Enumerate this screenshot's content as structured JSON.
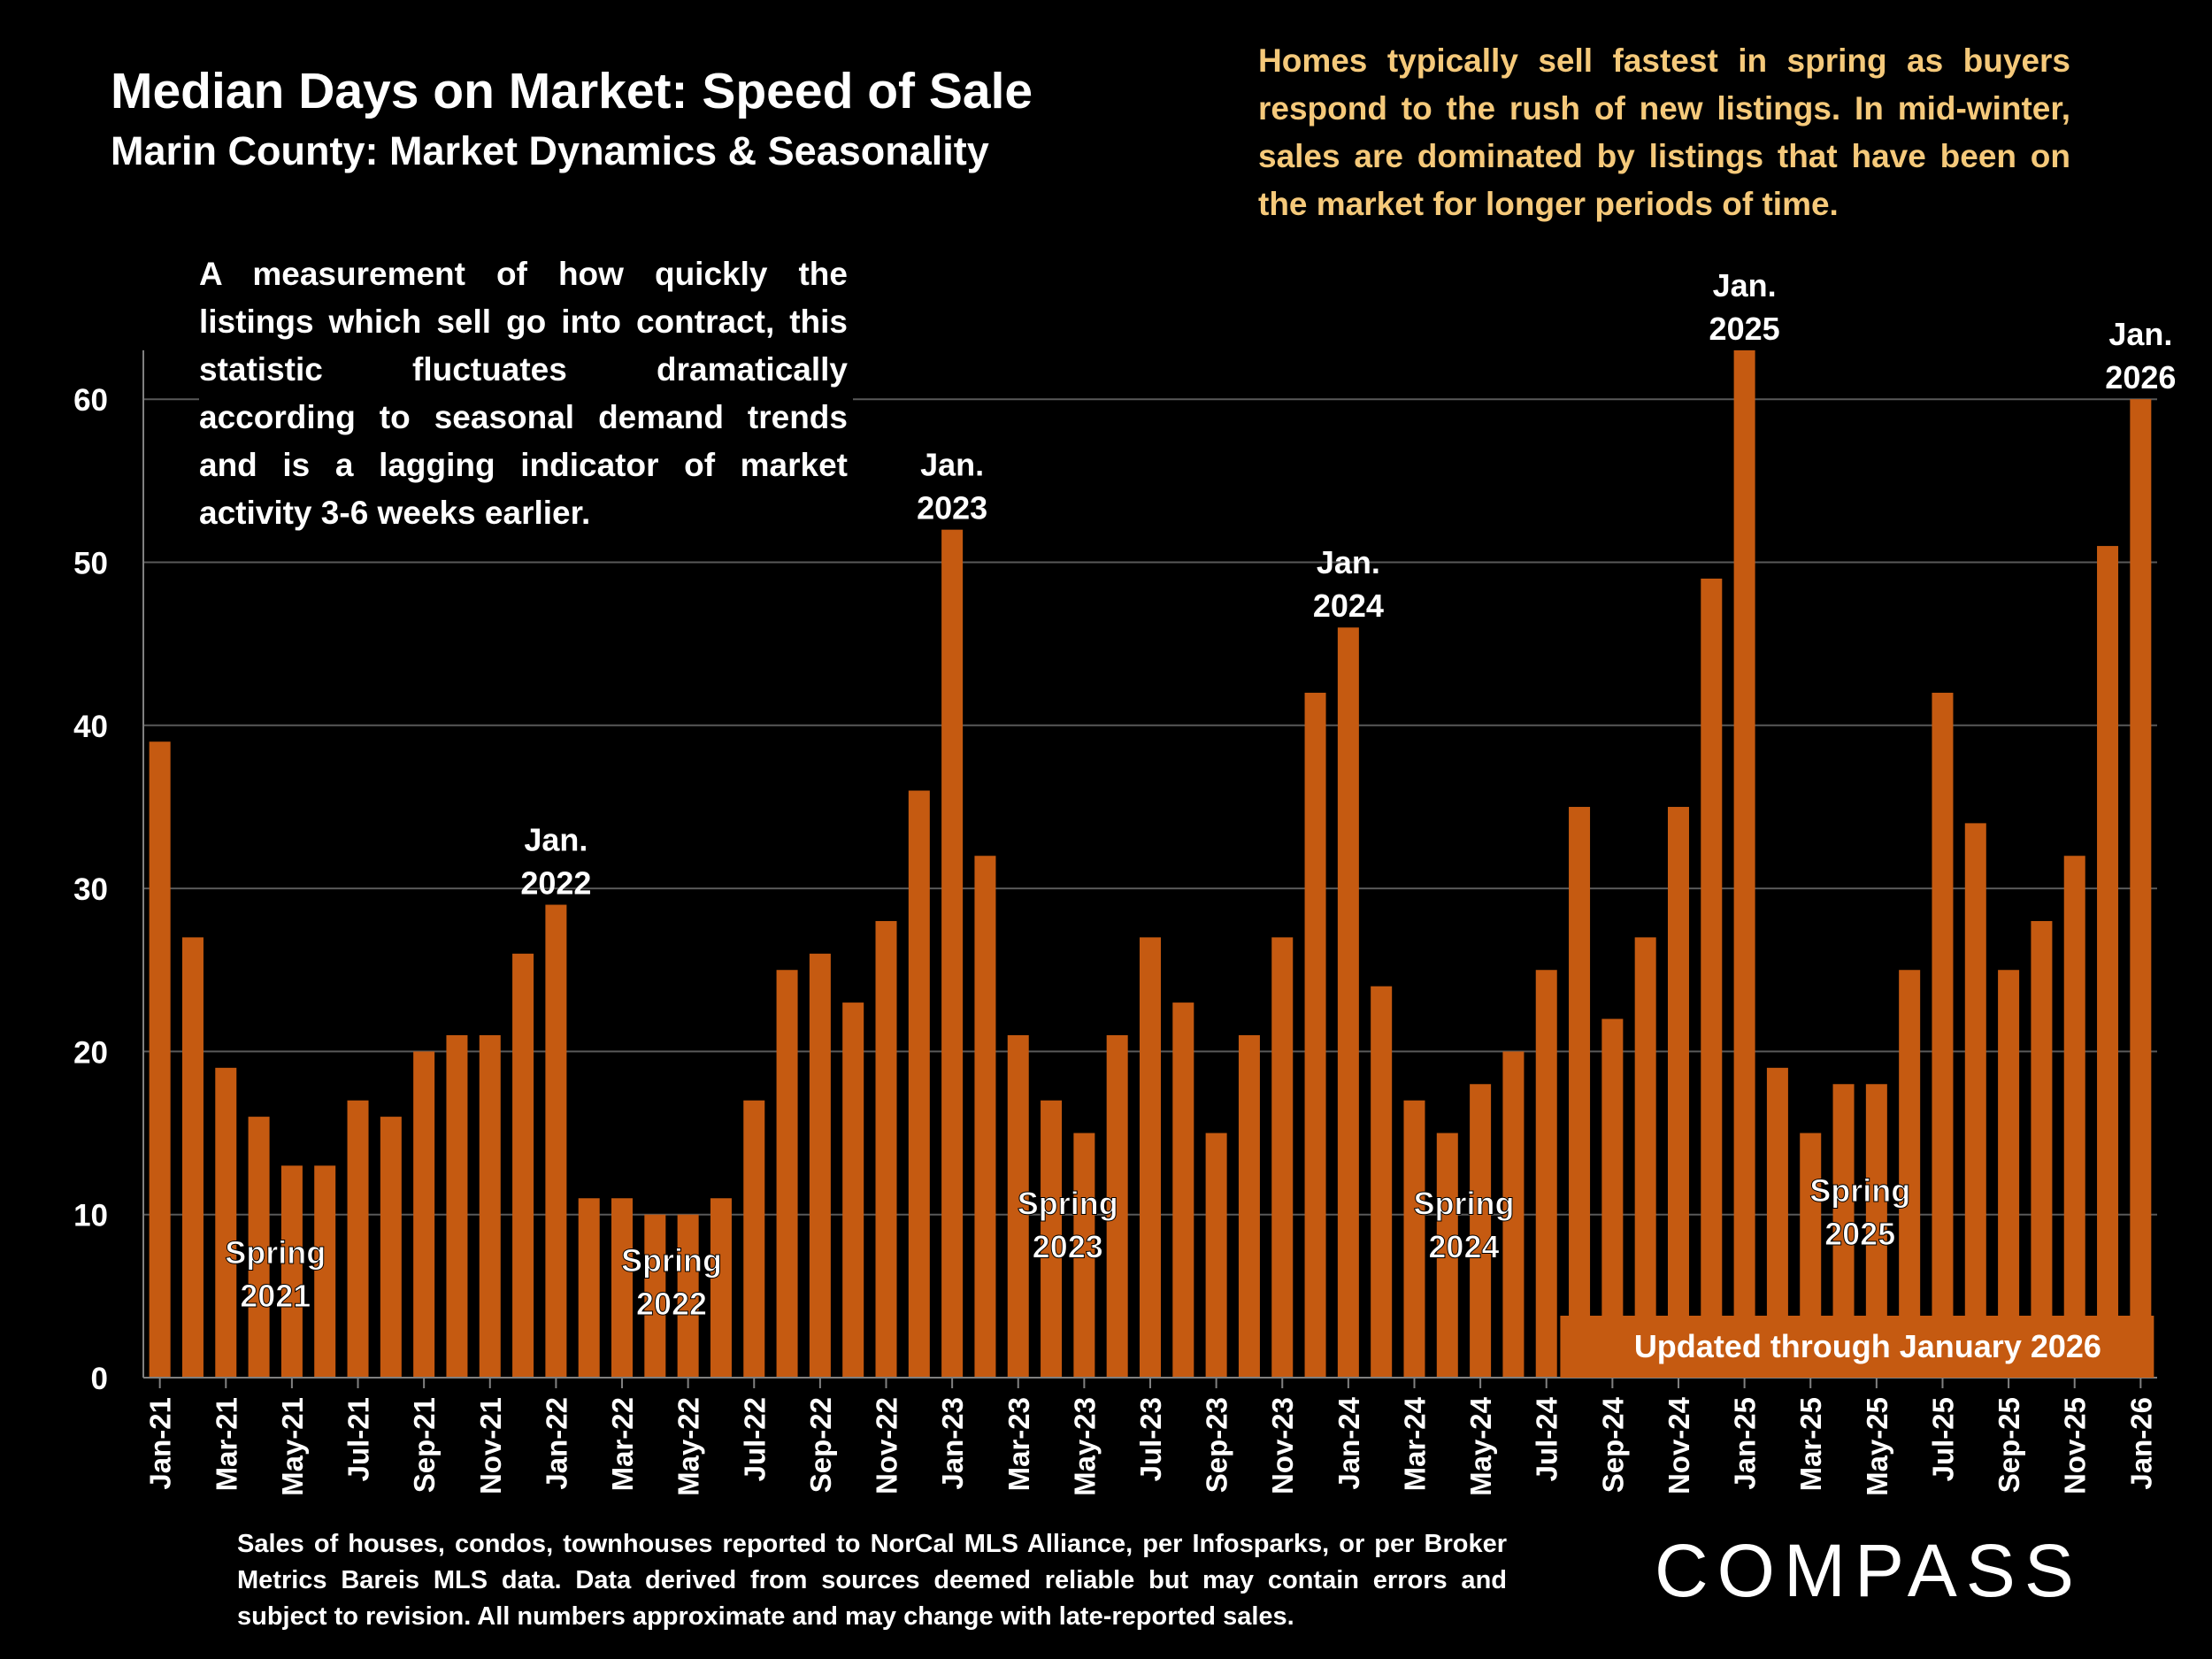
{
  "title": "Median Days on Market:  Speed of Sale",
  "subtitle": "Marin County: Market Dynamics & Seasonality",
  "seasonal_note": "Homes typically sell fastest in spring as buyers respond to the rush of new listings. In mid-winter, sales are dominated by listings that have been on the market for longer periods of time.",
  "measure_note": "A measurement of how quickly the listings which sell go into contract, this statistic fluctuates dramatically according to seasonal demand trends and is a lagging indicator of market activity 3-6 weeks earlier.",
  "footnote": "Sales of houses, condos, townhouses reported to NorCal MLS Alliance, per Infosparks, or per Broker Metrics Bareis MLS data. Data derived from sources deemed reliable but may contain errors and subject to revision. All numbers approximate and may change with late-reported sales.",
  "brand": "COMPASS",
  "colors": {
    "bar": "#c55a11",
    "background": "#000000",
    "note": "#f5c97a",
    "gridline": "#595959"
  },
  "chart_data": {
    "type": "bar",
    "title": "Median Days on Market:  Speed of Sale",
    "xlabel": "",
    "ylabel": "",
    "ylim": [
      0,
      63
    ],
    "yticks": [
      0,
      10,
      20,
      30,
      40,
      50,
      60
    ],
    "grid": true,
    "categories": [
      "Jan-21",
      "Feb-21",
      "Mar-21",
      "Apr-21",
      "May-21",
      "Jun-21",
      "Jul-21",
      "Aug-21",
      "Sep-21",
      "Oct-21",
      "Nov-21",
      "Dec-21",
      "Jan-22",
      "Feb-22",
      "Mar-22",
      "Apr-22",
      "May-22",
      "Jun-22",
      "Jul-22",
      "Aug-22",
      "Sep-22",
      "Oct-22",
      "Nov-22",
      "Dec-22",
      "Jan-23",
      "Feb-23",
      "Mar-23",
      "Apr-23",
      "May-23",
      "Jun-23",
      "Jul-23",
      "Aug-23",
      "Sep-23",
      "Oct-23",
      "Nov-23",
      "Dec-23",
      "Jan-24",
      "Feb-24",
      "Mar-24",
      "Apr-24",
      "May-24",
      "Jun-24",
      "Jul-24",
      "Aug-24",
      "Sep-24",
      "Oct-24",
      "Nov-24",
      "Dec-24",
      "Jan-25",
      "Feb-25",
      "Mar-25",
      "Apr-25",
      "May-25",
      "Jun-25",
      "Jul-25",
      "Aug-25",
      "Sep-25",
      "Oct-25",
      "Nov-25",
      "Dec-25",
      "Jan-26"
    ],
    "values": [
      39,
      27,
      19,
      16,
      13,
      13,
      17,
      16,
      20,
      21,
      21,
      26,
      29,
      11,
      11,
      10,
      10,
      11,
      17,
      25,
      26,
      23,
      28,
      36,
      52,
      32,
      21,
      17,
      15,
      21,
      27,
      23,
      15,
      21,
      27,
      42,
      46,
      24,
      17,
      15,
      18,
      20,
      25,
      35,
      22,
      27,
      35,
      49,
      63,
      19,
      15,
      18,
      18,
      25,
      42,
      34,
      25,
      28,
      32,
      51,
      60
    ],
    "tick_labels": [
      "Jan-21",
      "Mar-21",
      "May-21",
      "Jul-21",
      "Sep-21",
      "Nov-21",
      "Jan-22",
      "Mar-22",
      "May-22",
      "Jul-22",
      "Sep-22",
      "Nov-22",
      "Jan-23",
      "Mar-23",
      "May-23",
      "Jul-23",
      "Sep-23",
      "Nov-23",
      "Jan-24",
      "Mar-24",
      "May-24",
      "Jul-24",
      "Sep-24",
      "Nov-24",
      "Jan-25",
      "Mar-25",
      "May-25",
      "Jul-25",
      "Sep-25",
      "Nov-25",
      "Jan-26"
    ],
    "annotations": [
      {
        "text": [
          "Jan.",
          "2022"
        ],
        "category": "Jan-22",
        "kind": "above"
      },
      {
        "text": [
          "Jan.",
          "2023"
        ],
        "category": "Jan-23",
        "kind": "above"
      },
      {
        "text": [
          "Jan.",
          "2024"
        ],
        "category": "Jan-24",
        "kind": "above"
      },
      {
        "text": [
          "Jan.",
          "2025"
        ],
        "category": "Jan-25",
        "kind": "above"
      },
      {
        "text": [
          "Jan.",
          "2026"
        ],
        "category": "Jan-26",
        "kind": "above"
      },
      {
        "text": [
          "Spring",
          "2021"
        ],
        "category": "Apr-21",
        "kind": "inside",
        "level": 7
      },
      {
        "text": [
          "Spring",
          "2022"
        ],
        "category": "Apr-22",
        "kind": "inside",
        "level": 6.5
      },
      {
        "text": [
          "Spring",
          "2023"
        ],
        "category": "Apr-23",
        "kind": "inside",
        "level": 10
      },
      {
        "text": [
          "Spring",
          "2024"
        ],
        "category": "Apr-24",
        "kind": "inside",
        "level": 10
      },
      {
        "text": [
          "Spring",
          "2025"
        ],
        "category": "Apr-25",
        "kind": "inside",
        "level": 10.8
      }
    ],
    "banner": "Updated through January 2026",
    "banner_range": [
      "Aug-24",
      "Jan-26"
    ]
  }
}
